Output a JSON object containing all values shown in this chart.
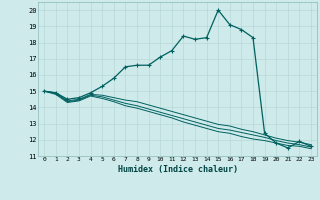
{
  "xlabel": "Humidex (Indice chaleur)",
  "bg_color": "#ceeaea",
  "line_color": "#006060",
  "grid_color": "#b8d8d8",
  "xlim": [
    -0.5,
    23.5
  ],
  "ylim": [
    11,
    20.5
  ],
  "yticks": [
    11,
    12,
    13,
    14,
    15,
    16,
    17,
    18,
    19,
    20
  ],
  "xticks": [
    0,
    1,
    2,
    3,
    4,
    5,
    6,
    7,
    8,
    9,
    10,
    11,
    12,
    13,
    14,
    15,
    16,
    17,
    18,
    19,
    20,
    21,
    22,
    23
  ],
  "series1_x": [
    0,
    1,
    2,
    3,
    4,
    5,
    6,
    7,
    8,
    9,
    10,
    11,
    12,
    13,
    14,
    15,
    16,
    17,
    18,
    19,
    20,
    21,
    22,
    23
  ],
  "series1_y": [
    15.0,
    14.9,
    14.5,
    14.6,
    14.9,
    15.3,
    15.8,
    16.5,
    16.6,
    16.6,
    17.1,
    17.5,
    18.4,
    18.2,
    18.3,
    20.0,
    19.1,
    18.8,
    18.3,
    12.4,
    11.8,
    11.5,
    11.9,
    11.6
  ],
  "series2_x": [
    0,
    1,
    2,
    3,
    4,
    5,
    6,
    7,
    8,
    9,
    10,
    11,
    12,
    13,
    14,
    15,
    16,
    17,
    18,
    19,
    20,
    21,
    22,
    23
  ],
  "series2_y": [
    15.0,
    14.9,
    14.4,
    14.5,
    14.8,
    14.75,
    14.6,
    14.45,
    14.35,
    14.15,
    13.95,
    13.75,
    13.55,
    13.35,
    13.15,
    12.95,
    12.85,
    12.65,
    12.5,
    12.3,
    12.1,
    11.95,
    11.85,
    11.7
  ],
  "series3_x": [
    0,
    1,
    2,
    3,
    4,
    5,
    6,
    7,
    8,
    9,
    10,
    11,
    12,
    13,
    14,
    15,
    16,
    17,
    18,
    19,
    20,
    21,
    22,
    23
  ],
  "series3_y": [
    15.0,
    14.85,
    14.35,
    14.45,
    14.75,
    14.65,
    14.45,
    14.25,
    14.1,
    13.9,
    13.7,
    13.5,
    13.3,
    13.1,
    12.9,
    12.7,
    12.6,
    12.45,
    12.3,
    12.15,
    11.95,
    11.8,
    11.7,
    11.55
  ],
  "series4_x": [
    0,
    1,
    2,
    3,
    4,
    5,
    6,
    7,
    8,
    9,
    10,
    11,
    12,
    13,
    14,
    15,
    16,
    17,
    18,
    19,
    20,
    21,
    22,
    23
  ],
  "series4_y": [
    15.0,
    14.8,
    14.3,
    14.4,
    14.7,
    14.55,
    14.35,
    14.1,
    13.95,
    13.75,
    13.55,
    13.35,
    13.1,
    12.9,
    12.7,
    12.5,
    12.4,
    12.2,
    12.05,
    11.95,
    11.8,
    11.65,
    11.6,
    11.45
  ]
}
